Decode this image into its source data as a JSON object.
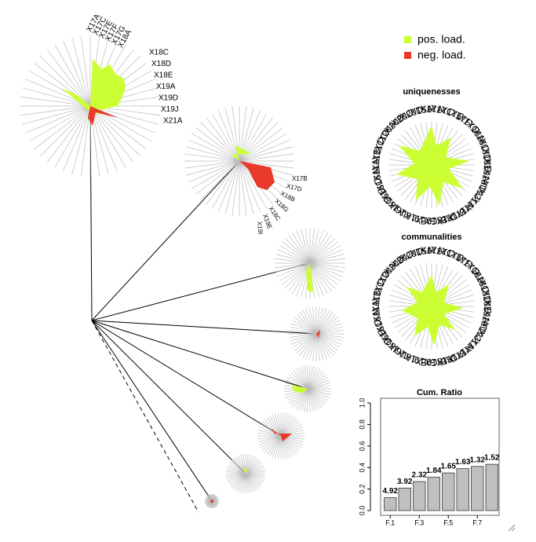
{
  "legend": {
    "items": [
      {
        "name": "pos. load.",
        "color": "#ccff33"
      },
      {
        "name": "neg. load.",
        "color": "#e8392a"
      }
    ]
  },
  "tree_labels": {
    "factor_1": [
      "X17A",
      "X17C",
      "X17E",
      "X17F",
      "X17G",
      "X18A",
      "X18C",
      "X18D",
      "X18E",
      "X19A",
      "X19D",
      "X19J",
      "X21A"
    ],
    "factor_2": [
      "X17B",
      "X17D",
      "X18B",
      "X18G",
      "X18C",
      "X19E",
      "X19I"
    ]
  },
  "uniquenesses": {
    "title": "uniquenesses"
  },
  "communalities": {
    "title": "communalities"
  },
  "variables": [
    "X17A",
    "X17C",
    "X17E",
    "X17F",
    "X17G",
    "X18A",
    "X18C",
    "X18D",
    "X18E",
    "X19A",
    "X19D",
    "X19J",
    "X21A",
    "X17B",
    "X17D",
    "X18B",
    "X18G",
    "X19E",
    "X19I",
    "X16L",
    "X16I",
    "X16G",
    "X16E",
    "X16C",
    "X16A",
    "X11A",
    "X11B",
    "X11C",
    "X11D",
    "X20A",
    "X20B",
    "X20C",
    "X20D",
    "X15A"
  ],
  "chart_data": {
    "type": "bar",
    "title": "Cum. Ratio",
    "categories": [
      "F.1",
      null,
      "F.3",
      null,
      "F.5",
      null,
      "F.7",
      null
    ],
    "values": [
      0.12,
      0.21,
      0.27,
      0.31,
      0.35,
      0.39,
      0.41,
      0.43
    ],
    "eigenvalues": [
      4.92,
      3.92,
      2.32,
      1.84,
      1.65,
      1.63,
      1.32,
      1.52
    ],
    "color": "#bfbfbf",
    "ylim": [
      0,
      1
    ],
    "yticks": [
      {
        "value": 0,
        "label": "0.0"
      },
      {
        "value": 0.2,
        "label": "0.2"
      },
      {
        "value": 0.4,
        "label": "0.4"
      },
      {
        "value": 0.6,
        "label": "0.6"
      },
      {
        "value": 0.8,
        "label": "0.8"
      },
      {
        "value": 1,
        "label": "1.0"
      }
    ]
  }
}
